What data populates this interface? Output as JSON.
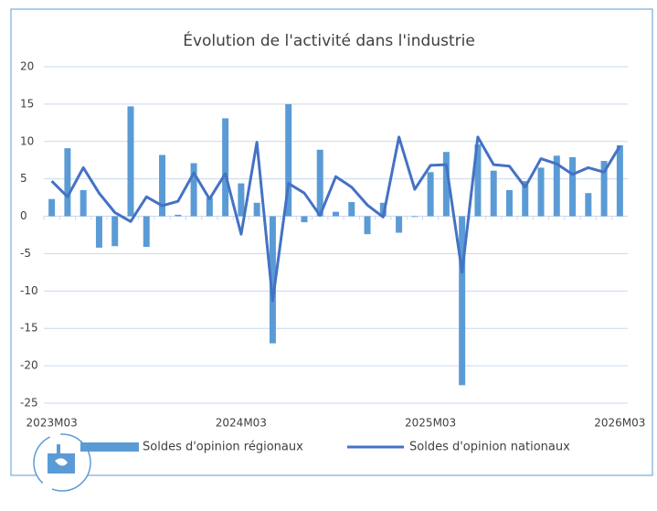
{
  "chart_data": {
    "type": "bar-line",
    "title": "Évolution de l'activité dans l'industrie",
    "categories": [
      "2023M03",
      null,
      null,
      null,
      null,
      null,
      null,
      null,
      null,
      null,
      null,
      null,
      "2024M03",
      null,
      null,
      null,
      null,
      null,
      null,
      null,
      null,
      null,
      null,
      null,
      "2025M03",
      null,
      null,
      null,
      null,
      null,
      null,
      null,
      null,
      null,
      null,
      null,
      "2026M03"
    ],
    "series": [
      {
        "name": "Soldes d'opinion régionaux",
        "type": "bar",
        "color": "#5b9bd5",
        "values": [
          2.3,
          9.1,
          3.5,
          -4.2,
          -4.0,
          14.7,
          -4.1,
          8.2,
          0.2,
          7.1,
          2.5,
          13.1,
          4.4,
          1.8,
          -17.0,
          15.0,
          -0.8,
          8.9,
          0.6,
          1.9,
          -2.4,
          1.8,
          -2.2,
          -0.1,
          5.9,
          8.6,
          -22.6,
          9.6,
          6.1,
          3.5,
          4.7,
          6.5,
          8.1,
          7.9,
          3.1,
          7.4,
          9.5
        ]
      },
      {
        "name": "Soldes d'opinion nationaux",
        "type": "line",
        "color": "#4472c4",
        "values": [
          4.7,
          2.6,
          6.5,
          3.1,
          0.5,
          -0.7,
          2.6,
          1.4,
          2.0,
          5.8,
          2.3,
          5.7,
          -2.4,
          9.9,
          -11.3,
          4.4,
          3.1,
          0.1,
          5.3,
          3.9,
          1.5,
          -0.1,
          10.6,
          3.6,
          6.8,
          6.9,
          -7.5,
          10.6,
          6.9,
          6.7,
          3.9,
          7.7,
          7.0,
          5.6,
          6.5,
          5.9,
          9.4
        ]
      }
    ],
    "ylim": [
      -25,
      20
    ],
    "yticks": [
      20,
      15,
      10,
      5,
      0,
      -5,
      -10,
      -15,
      -20,
      -25
    ],
    "grid": true,
    "legend": "bottom"
  }
}
